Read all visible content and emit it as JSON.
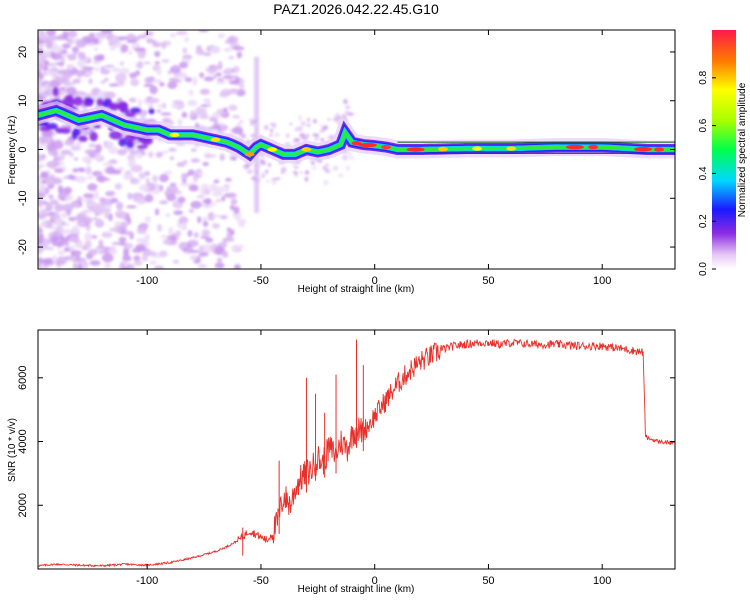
{
  "colors": {
    "snr_line": "#e8302a",
    "ridge": "#006400",
    "axis": "#000000"
  },
  "chart_data": [
    {
      "type": "heatmap",
      "title": "PAZ1.2026.042.22.45.G10",
      "xlabel": "Height of straight line (km)",
      "ylabel": "Frequency (Hz)",
      "xlim": [
        -148,
        132
      ],
      "ylim": [
        -24.5,
        24.5
      ],
      "xticks": [
        -100,
        -50,
        0,
        50,
        100
      ],
      "yticks": [
        -20,
        -10,
        0,
        10,
        20
      ],
      "colorbar": {
        "label": "Normalized spectral amplitude",
        "range": [
          0.0,
          1.0
        ],
        "ticks": [
          0.0,
          0.2,
          0.4,
          0.6,
          0.8
        ]
      },
      "frequency_ridge": {
        "x": [
          -148,
          -140,
          -130,
          -120,
          -110,
          -100,
          -95,
          -90,
          -85,
          -80,
          -75,
          -70,
          -65,
          -60,
          -55,
          -52,
          -50,
          -45,
          -40,
          -35,
          -30,
          -25,
          -20,
          -15,
          -13,
          -10,
          -5,
          0,
          5,
          10,
          20,
          40,
          60,
          80,
          100,
          120,
          132
        ],
        "y": [
          7,
          8,
          6,
          7,
          5,
          4,
          4,
          3,
          3,
          3,
          2.5,
          2,
          1.5,
          0.5,
          -1,
          0.5,
          1,
          0,
          -1,
          -1,
          0,
          -0.5,
          0,
          1,
          3.5,
          1.5,
          1,
          0.8,
          0.5,
          0,
          0,
          0.2,
          0.2,
          0.5,
          0.5,
          0,
          0
        ]
      }
    },
    {
      "type": "line",
      "xlabel": "Height of straight line (km)",
      "ylabel": "SNR (10 * v/v)",
      "xlim": [
        -148,
        132
      ],
      "ylim": [
        0,
        7500
      ],
      "xticks": [
        -100,
        -50,
        0,
        50,
        100
      ],
      "yticks": [
        2000,
        4000,
        6000
      ],
      "series": [
        {
          "name": "SNR",
          "x": [
            -148,
            -140,
            -130,
            -120,
            -110,
            -100,
            -90,
            -80,
            -70,
            -65,
            -60,
            -55,
            -50,
            -47,
            -43,
            -40,
            -37,
            -35,
            -33,
            -30,
            -28,
            -25,
            -23,
            -20,
            -17,
            -15,
            -12,
            -10,
            -8,
            -5,
            0,
            5,
            10,
            15,
            20,
            25,
            30,
            35,
            40,
            45,
            50,
            55,
            60,
            70,
            80,
            90,
            100,
            110,
            118,
            119,
            120,
            125,
            132
          ],
          "y": [
            100,
            150,
            120,
            100,
            150,
            120,
            200,
            350,
            550,
            700,
            900,
            1200,
            1000,
            900,
            1400,
            2300,
            2000,
            2500,
            2800,
            3000,
            3100,
            3500,
            3300,
            3800,
            3600,
            4000,
            3800,
            4200,
            4400,
            4300,
            4800,
            5300,
            5800,
            6200,
            6500,
            6700,
            6900,
            7000,
            7050,
            7100,
            7100,
            7050,
            7100,
            7050,
            7050,
            7000,
            7000,
            6900,
            6800,
            4200,
            4100,
            4000,
            3950
          ]
        }
      ],
      "spikes": [
        {
          "x": -58,
          "y": 1300
        },
        {
          "x": -42,
          "y": 3400
        },
        {
          "x": -30,
          "y": 6000
        },
        {
          "x": -26,
          "y": 5500
        },
        {
          "x": -22,
          "y": 4900
        },
        {
          "x": -17,
          "y": 6100
        },
        {
          "x": -8,
          "y": 7200
        },
        {
          "x": -5,
          "y": 6400
        }
      ]
    }
  ]
}
